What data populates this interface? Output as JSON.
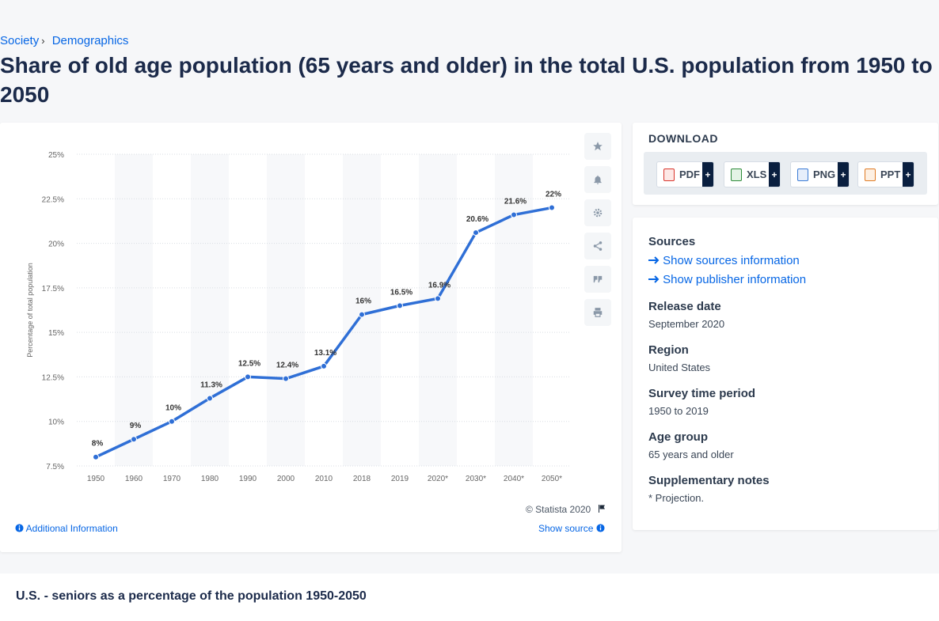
{
  "breadcrumb": {
    "item1": "Society",
    "sep": "›",
    "item2": "Demographics"
  },
  "page_title": "Share of old age population (65 years and older) in the total U.S. population from 1950 to 2050",
  "chart_data": {
    "type": "line",
    "ylabel": "Percentage of total population",
    "ylim": [
      7.5,
      25
    ],
    "yticks": [
      "7.5%",
      "10%",
      "12.5%",
      "15%",
      "17.5%",
      "20%",
      "22.5%",
      "25%"
    ],
    "categories": [
      "1950",
      "1960",
      "1970",
      "1980",
      "1990",
      "2000",
      "2010",
      "2018",
      "2019",
      "2020*",
      "2030*",
      "2040*",
      "2050*"
    ],
    "values": [
      8,
      9,
      10,
      11.3,
      12.5,
      12.4,
      13.1,
      16,
      16.5,
      16.9,
      20.6,
      21.6,
      22
    ],
    "data_labels": [
      "8%",
      "9%",
      "10%",
      "11.3%",
      "12.5%",
      "12.4%",
      "13.1%",
      "16%",
      "16.5%",
      "16.9%",
      "20.6%",
      "21.6%",
      "22%"
    ],
    "line_color": "#2f6fd6",
    "grid": true
  },
  "chart_footer": {
    "copyright": "© Statista 2020",
    "additional_info": "Additional Information",
    "show_source": "Show source"
  },
  "download": {
    "title": "DOWNLOAD",
    "buttons": [
      {
        "label": "PDF",
        "plus": "+",
        "color": "#d9342b"
      },
      {
        "label": "XLS",
        "plus": "+",
        "color": "#2e8b3a"
      },
      {
        "label": "PNG",
        "plus": "+",
        "color": "#3a7bd5"
      },
      {
        "label": "PPT",
        "plus": "+",
        "color": "#e07b24"
      }
    ]
  },
  "info": {
    "sources_label": "Sources",
    "show_sources": "Show sources information",
    "show_publisher": "Show publisher information",
    "release_label": "Release date",
    "release_val": "September 2020",
    "region_label": "Region",
    "region_val": "United States",
    "survey_label": "Survey time period",
    "survey_val": "1950 to 2019",
    "age_label": "Age group",
    "age_val": "65 years and older",
    "notes_label": "Supplementary notes",
    "notes_val": "* Projection."
  },
  "bottom_title": "U.S. - seniors as a percentage of the population 1950-2050"
}
